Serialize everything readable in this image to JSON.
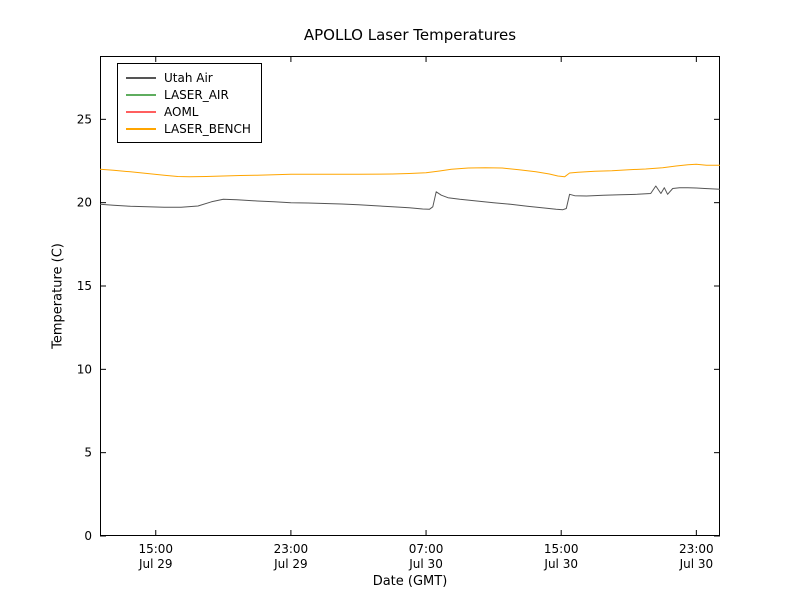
{
  "chart_data": {
    "type": "line",
    "title": "APOLLO Laser Temperatures",
    "xlabel": "Date (GMT)",
    "ylabel": "Temperature (C)",
    "x_unit": "hours since Jul 29 00:00 GMT",
    "xlim": [
      11.7,
      48.4
    ],
    "ylim": [
      0,
      28.8
    ],
    "grid": false,
    "legend_position": "upper-left",
    "background_color": "#ffffff",
    "axis_color": "#000000",
    "yticks": [
      0,
      5,
      10,
      15,
      20,
      25
    ],
    "xticks": [
      {
        "x": 15,
        "time": "15:00",
        "date": "Jul 29"
      },
      {
        "x": 23,
        "time": "23:00",
        "date": "Jul 29"
      },
      {
        "x": 31,
        "time": "07:00",
        "date": "Jul 30"
      },
      {
        "x": 39,
        "time": "15:00",
        "date": "Jul 30"
      },
      {
        "x": 47,
        "time": "23:00",
        "date": "Jul 30"
      }
    ],
    "series": [
      {
        "name": "Utah Air",
        "color": "#555555",
        "points": [
          [
            11.7,
            19.9
          ],
          [
            12.5,
            19.85
          ],
          [
            13.5,
            19.78
          ],
          [
            14.5,
            19.75
          ],
          [
            15.5,
            19.72
          ],
          [
            16.5,
            19.72
          ],
          [
            17.5,
            19.8
          ],
          [
            18.3,
            20.05
          ],
          [
            19.0,
            20.2
          ],
          [
            19.8,
            20.18
          ],
          [
            21.0,
            20.1
          ],
          [
            22.0,
            20.05
          ],
          [
            23.0,
            20.0
          ],
          [
            24.0,
            19.98
          ],
          [
            25.0,
            19.95
          ],
          [
            26.0,
            19.92
          ],
          [
            27.0,
            19.88
          ],
          [
            28.0,
            19.82
          ],
          [
            29.0,
            19.75
          ],
          [
            30.0,
            19.7
          ],
          [
            30.8,
            19.62
          ],
          [
            31.2,
            19.6
          ],
          [
            31.4,
            19.75
          ],
          [
            31.6,
            20.65
          ],
          [
            31.9,
            20.45
          ],
          [
            32.3,
            20.3
          ],
          [
            33.0,
            20.2
          ],
          [
            34.0,
            20.1
          ],
          [
            35.0,
            20.0
          ],
          [
            36.0,
            19.9
          ],
          [
            37.0,
            19.78
          ],
          [
            38.0,
            19.68
          ],
          [
            38.7,
            19.6
          ],
          [
            39.1,
            19.58
          ],
          [
            39.3,
            19.65
          ],
          [
            39.5,
            20.5
          ],
          [
            39.8,
            20.42
          ],
          [
            40.5,
            20.4
          ],
          [
            41.5,
            20.45
          ],
          [
            42.5,
            20.48
          ],
          [
            43.5,
            20.5
          ],
          [
            44.3,
            20.55
          ],
          [
            44.6,
            21.0
          ],
          [
            44.9,
            20.55
          ],
          [
            45.1,
            20.9
          ],
          [
            45.3,
            20.5
          ],
          [
            45.6,
            20.85
          ],
          [
            46.0,
            20.9
          ],
          [
            46.5,
            20.9
          ],
          [
            47.0,
            20.88
          ],
          [
            47.5,
            20.85
          ],
          [
            48.4,
            20.8
          ]
        ]
      },
      {
        "name": "LASER_AIR",
        "color": "#5fad5f",
        "points": []
      },
      {
        "name": "AOML",
        "color": "#ff5f5f",
        "points": []
      },
      {
        "name": "LASER_BENCH",
        "color": "#ffa500",
        "points": [
          [
            11.7,
            22.0
          ],
          [
            12.5,
            21.95
          ],
          [
            13.5,
            21.85
          ],
          [
            14.5,
            21.75
          ],
          [
            15.5,
            21.65
          ],
          [
            16.3,
            21.57
          ],
          [
            17.0,
            21.55
          ],
          [
            18.0,
            21.57
          ],
          [
            19.0,
            21.6
          ],
          [
            20.0,
            21.63
          ],
          [
            21.0,
            21.65
          ],
          [
            22.0,
            21.68
          ],
          [
            23.0,
            21.7
          ],
          [
            25.0,
            21.7
          ],
          [
            27.0,
            21.7
          ],
          [
            29.0,
            21.72
          ],
          [
            30.0,
            21.75
          ],
          [
            31.0,
            21.8
          ],
          [
            31.8,
            21.9
          ],
          [
            32.5,
            22.0
          ],
          [
            33.5,
            22.08
          ],
          [
            34.5,
            22.1
          ],
          [
            35.5,
            22.08
          ],
          [
            36.5,
            21.98
          ],
          [
            37.5,
            21.85
          ],
          [
            38.3,
            21.72
          ],
          [
            38.8,
            21.6
          ],
          [
            39.2,
            21.55
          ],
          [
            39.5,
            21.78
          ],
          [
            40.0,
            21.82
          ],
          [
            41.0,
            21.88
          ],
          [
            42.0,
            21.92
          ],
          [
            43.0,
            21.98
          ],
          [
            44.0,
            22.02
          ],
          [
            45.0,
            22.1
          ],
          [
            45.8,
            22.2
          ],
          [
            46.5,
            22.28
          ],
          [
            47.0,
            22.3
          ],
          [
            47.6,
            22.25
          ],
          [
            48.4,
            22.25
          ]
        ]
      }
    ]
  }
}
